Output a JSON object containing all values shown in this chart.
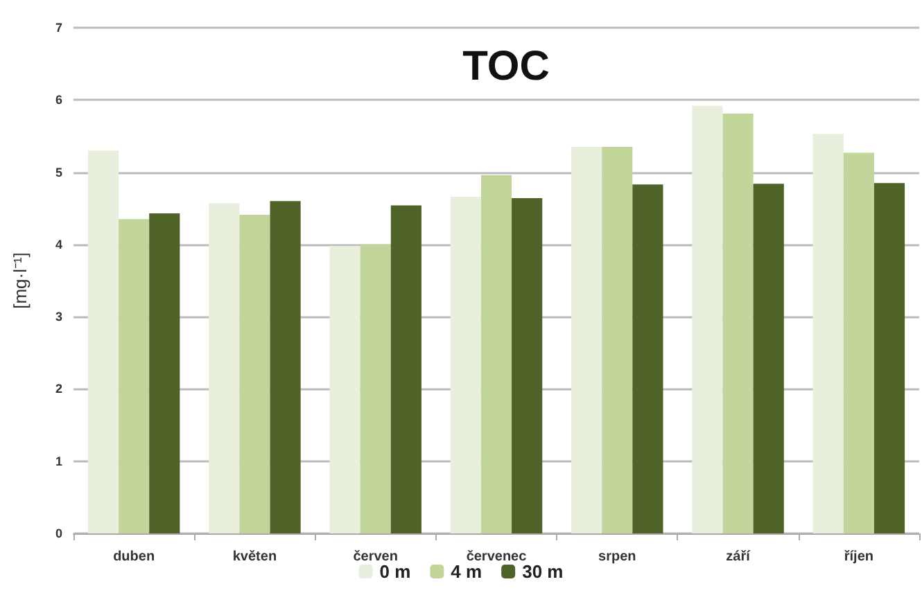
{
  "chart_data": {
    "type": "bar",
    "title": "TOC",
    "ylabel": "[mg·l⁻¹]",
    "categories": [
      "duben",
      "květen",
      "červen",
      "červenec",
      "srpen",
      "září",
      "říjen"
    ],
    "series": [
      {
        "name": "0 m",
        "color": "#e8efdc",
        "values": [
          5.3,
          4.57,
          3.98,
          4.66,
          5.35,
          5.92,
          5.53
        ]
      },
      {
        "name": "4 m",
        "color": "#c2d69b",
        "values": [
          4.35,
          4.41,
          4.0,
          4.96,
          5.35,
          5.81,
          5.27
        ]
      },
      {
        "name": "30 m",
        "color": "#4f6228",
        "values": [
          4.43,
          4.6,
          4.54,
          4.64,
          4.83,
          4.84,
          4.85
        ]
      }
    ],
    "ylim": [
      0,
      7
    ],
    "yticks": [
      0,
      1,
      2,
      3,
      4,
      5,
      6,
      7
    ],
    "grid": "y",
    "legend": "bottom"
  }
}
